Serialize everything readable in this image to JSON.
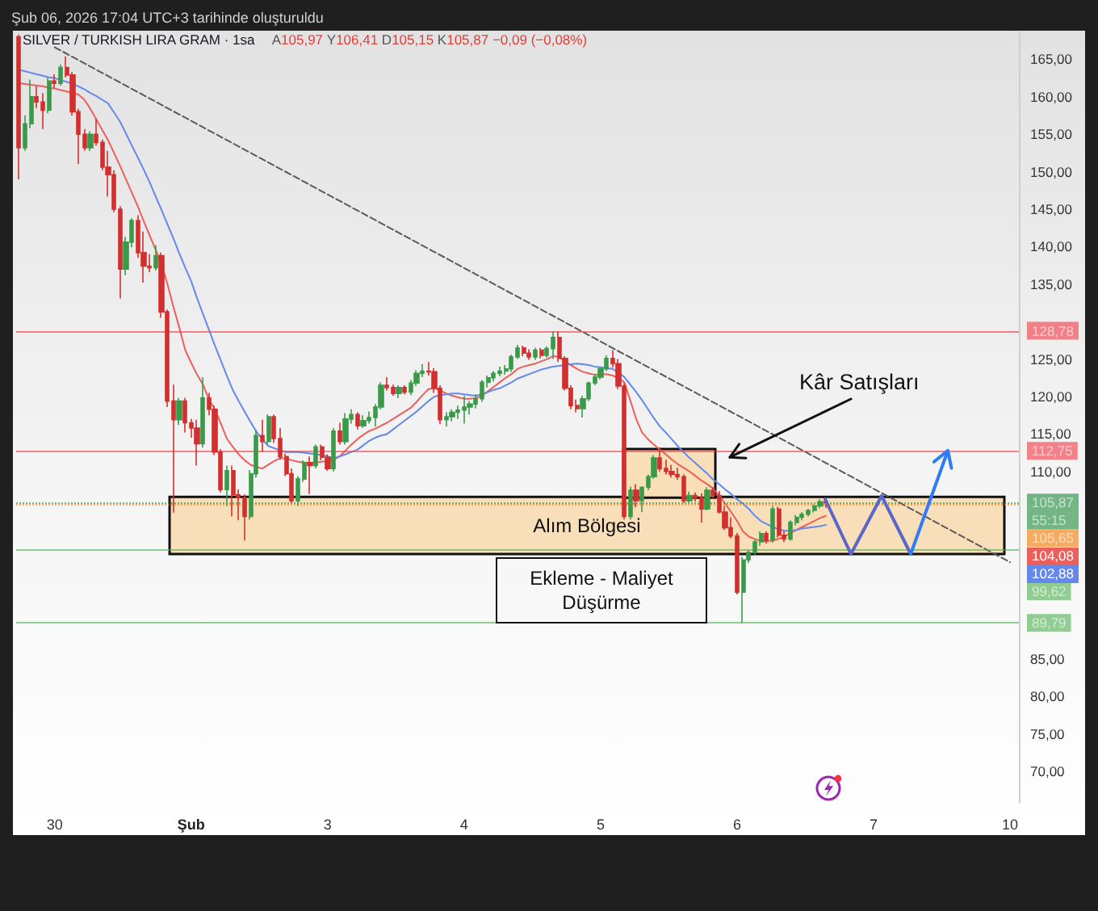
{
  "chart_data": {
    "type": "candlestick",
    "title": "SILVER / TURKISH LIRA GRAM · 1sa",
    "subtitle": "A105,97 Y106,41 D105,15 K105,87 −0,09 (−0,08%)",
    "annotations": [
      "Şub 06, 2026 17:04 UTC+3 tarihinde oluşturuldu",
      {
        "text": "Kâr Satışları",
        "y": 111.9
      },
      "Ekleme - Maliyet Düşürme",
      "104,08",
      "102,88"
    ],
    "categories": [
      null,
      null,
      null,
      null,
      null,
      null,
      "30",
      null,
      null,
      null,
      null,
      null,
      null,
      null,
      null,
      null,
      null,
      null,
      null,
      null,
      null,
      null,
      null,
      null,
      null,
      null,
      null,
      null,
      null,
      "Şub",
      null,
      null,
      null,
      null,
      null,
      null,
      null,
      null,
      null,
      null,
      null,
      null,
      null,
      null,
      null,
      null,
      null,
      null,
      null,
      null,
      null,
      null,
      "3",
      null,
      null,
      null,
      null,
      null,
      null,
      null,
      null,
      null,
      null,
      null,
      null,
      null,
      null,
      null,
      null,
      null,
      null,
      null,
      null,
      null,
      null,
      "4",
      null,
      null,
      null,
      null,
      null,
      null,
      null,
      null,
      null,
      null,
      null,
      null,
      null,
      null,
      null,
      null,
      null,
      null,
      null,
      null,
      null,
      null,
      "5",
      null,
      null,
      null,
      null,
      null,
      null,
      null,
      null,
      null,
      null,
      null,
      null,
      null,
      null,
      null,
      null,
      null,
      null,
      null,
      null,
      null,
      null,
      "6",
      null,
      null,
      null,
      null,
      null,
      null,
      null,
      null,
      null,
      null,
      null,
      null,
      null,
      null,
      null,
      null,
      null,
      null,
      null,
      null,
      null,
      null,
      "7",
      null,
      null,
      null,
      null,
      null,
      null,
      null,
      null,
      null,
      null,
      null,
      null,
      null,
      null,
      null,
      null,
      null,
      null,
      null,
      null,
      null,
      null,
      "10",
      null
    ],
    "ohlc": [
      [
        168.0,
        168.3,
        149.0,
        153.2
      ],
      [
        153.2,
        157.5,
        152.8,
        156.4
      ],
      [
        156.4,
        162.3,
        155.8,
        160.0
      ],
      [
        160.0,
        161.4,
        158.5,
        159.3
      ],
      [
        159.3,
        160.5,
        155.7,
        158.2
      ],
      [
        158.2,
        162.5,
        157.8,
        162.1
      ],
      [
        162.1,
        163.0,
        161.2,
        161.8
      ],
      [
        161.8,
        164.3,
        161.5,
        163.9
      ],
      [
        163.9,
        165.4,
        162.6,
        162.9
      ],
      [
        162.9,
        163.3,
        157.5,
        158.0
      ],
      [
        158.0,
        158.4,
        151.0,
        155.0
      ],
      [
        155.0,
        155.7,
        152.8,
        153.2
      ],
      [
        153.2,
        155.4,
        152.8,
        155.0
      ],
      [
        155.0,
        157.1,
        153.5,
        153.9
      ],
      [
        153.9,
        154.3,
        150.2,
        150.6
      ],
      [
        150.6,
        152.8,
        146.7,
        149.6
      ],
      [
        149.6,
        150.2,
        144.6,
        145.0
      ],
      [
        145.0,
        145.4,
        133.1,
        137.0
      ],
      [
        137.0,
        141.3,
        136.2,
        140.6
      ],
      [
        140.6,
        143.8,
        139.9,
        143.5
      ],
      [
        143.5,
        144.2,
        138.5,
        139.2
      ],
      [
        139.2,
        142.0,
        135.2,
        137.4
      ],
      [
        137.4,
        139.0,
        136.6,
        137.2
      ],
      [
        137.2,
        140.2,
        136.8,
        138.8
      ],
      [
        138.8,
        139.2,
        130.5,
        131.3
      ],
      [
        131.3,
        131.6,
        118.6,
        119.4
      ],
      [
        119.4,
        121.6,
        104.5,
        116.9
      ],
      [
        116.9,
        119.8,
        116.2,
        119.4
      ],
      [
        119.4,
        119.8,
        115.2,
        116.5
      ],
      [
        116.5,
        117.0,
        114.5,
        115.8
      ],
      [
        115.8,
        116.9,
        110.8,
        113.7
      ],
      [
        113.7,
        122.6,
        113.2,
        119.8
      ],
      [
        119.8,
        120.5,
        117.5,
        118.3
      ],
      [
        118.3,
        118.8,
        112.2,
        112.6
      ],
      [
        112.6,
        113.0,
        107.2,
        107.6
      ],
      [
        107.6,
        110.8,
        105.4,
        110.1
      ],
      [
        110.1,
        110.8,
        104.0,
        106.9
      ],
      [
        106.9,
        107.6,
        103.5,
        106.5
      ],
      [
        106.5,
        107.0,
        100.8,
        104.0
      ],
      [
        104.0,
        110.2,
        103.6,
        109.7
      ],
      [
        109.7,
        115.5,
        109.2,
        114.8
      ],
      [
        114.8,
        116.9,
        112.6,
        114.0
      ],
      [
        114.0,
        117.6,
        113.6,
        117.3
      ],
      [
        117.3,
        117.6,
        113.8,
        114.4
      ],
      [
        114.4,
        115.8,
        111.6,
        112.0
      ],
      [
        112.0,
        112.4,
        109.4,
        109.7
      ],
      [
        109.7,
        110.4,
        105.8,
        106.1
      ],
      [
        106.1,
        109.4,
        105.4,
        109.0
      ],
      [
        109.0,
        111.5,
        108.6,
        111.2
      ],
      [
        111.2,
        112.0,
        107.0,
        110.8
      ],
      [
        110.8,
        113.6,
        110.4,
        113.3
      ],
      [
        113.3,
        113.6,
        111.5,
        111.9
      ],
      [
        111.9,
        112.3,
        110.1,
        110.4
      ],
      [
        110.4,
        115.8,
        110.0,
        115.4
      ],
      [
        115.4,
        116.5,
        113.6,
        114.0
      ],
      [
        114.0,
        117.8,
        113.6,
        117.0
      ],
      [
        117.0,
        118.3,
        116.4,
        117.6
      ],
      [
        117.6,
        117.9,
        115.6,
        116.1
      ],
      [
        116.1,
        117.5,
        115.8,
        116.8
      ],
      [
        116.8,
        118.0,
        116.4,
        117.2
      ],
      [
        117.2,
        119.0,
        116.0,
        118.6
      ],
      [
        118.6,
        121.9,
        118.3,
        121.5
      ],
      [
        121.5,
        122.6,
        120.8,
        121.2
      ],
      [
        121.2,
        121.6,
        120.1,
        120.4
      ],
      [
        120.4,
        121.5,
        119.8,
        121.2
      ],
      [
        121.2,
        121.5,
        120.3,
        120.6
      ],
      [
        120.6,
        122.2,
        120.2,
        121.8
      ],
      [
        121.8,
        123.5,
        121.4,
        123.1
      ],
      [
        123.1,
        124.3,
        122.6,
        123.4
      ],
      [
        123.4,
        124.6,
        122.8,
        123.3
      ],
      [
        123.3,
        123.8,
        120.5,
        121.1
      ],
      [
        121.1,
        121.5,
        116.3,
        116.9
      ],
      [
        116.9,
        117.9,
        116.0,
        117.3
      ],
      [
        117.3,
        118.3,
        116.7,
        117.9
      ],
      [
        117.9,
        118.8,
        117.0,
        118.2
      ],
      [
        118.2,
        120.1,
        116.4,
        118.6
      ],
      [
        118.6,
        119.4,
        117.6,
        119.0
      ],
      [
        119.0,
        120.3,
        118.4,
        119.7
      ],
      [
        119.7,
        122.2,
        119.3,
        121.9
      ],
      [
        121.9,
        122.8,
        121.2,
        122.5
      ],
      [
        122.5,
        123.4,
        122.0,
        123.1
      ],
      [
        123.1,
        124.0,
        122.7,
        123.4
      ],
      [
        123.4,
        124.2,
        122.9,
        123.7
      ],
      [
        123.7,
        125.6,
        123.3,
        125.3
      ],
      [
        125.3,
        126.9,
        125.0,
        126.5
      ],
      [
        126.5,
        126.8,
        125.4,
        125.8
      ],
      [
        125.8,
        126.3,
        124.9,
        125.3
      ],
      [
        125.3,
        126.5,
        124.9,
        126.2
      ],
      [
        126.2,
        126.5,
        125.1,
        125.5
      ],
      [
        125.5,
        126.7,
        125.2,
        126.4
      ],
      [
        126.4,
        128.7,
        125.0,
        127.9
      ],
      [
        127.9,
        128.7,
        124.6,
        125.1
      ],
      [
        125.1,
        125.4,
        120.8,
        121.1
      ],
      [
        121.1,
        121.5,
        118.3,
        118.8
      ],
      [
        118.8,
        119.6,
        117.9,
        118.4
      ],
      [
        118.4,
        120.1,
        117.2,
        119.7
      ],
      [
        119.7,
        122.0,
        119.4,
        121.8
      ],
      [
        121.8,
        123.0,
        121.5,
        122.6
      ],
      [
        122.6,
        124.0,
        122.3,
        123.7
      ],
      [
        123.7,
        125.5,
        123.4,
        125.1
      ],
      [
        125.1,
        126.2,
        123.9,
        124.4
      ],
      [
        124.4,
        125.0,
        121.0,
        121.4
      ],
      [
        121.4,
        121.8,
        103.6,
        104.0
      ],
      [
        104.0,
        108.0,
        103.6,
        107.5
      ],
      [
        107.5,
        108.3,
        105.2,
        106.1
      ],
      [
        106.1,
        108.0,
        104.6,
        107.9
      ],
      [
        107.9,
        109.6,
        107.5,
        109.3
      ],
      [
        109.3,
        112.2,
        109.0,
        111.8
      ],
      [
        111.8,
        113.2,
        110.0,
        110.4
      ],
      [
        110.4,
        111.6,
        109.6,
        110.0
      ],
      [
        110.0,
        110.9,
        109.2,
        109.6
      ],
      [
        109.6,
        110.5,
        108.9,
        109.3
      ],
      [
        109.3,
        109.6,
        105.8,
        106.1
      ],
      [
        106.1,
        107.3,
        105.8,
        106.8
      ],
      [
        106.8,
        107.2,
        106.0,
        106.5
      ],
      [
        106.5,
        107.1,
        103.2,
        105.0
      ],
      [
        105.0,
        107.9,
        104.8,
        107.5
      ],
      [
        107.5,
        107.9,
        106.4,
        106.8
      ],
      [
        106.8,
        107.4,
        104.4,
        104.6
      ],
      [
        104.6,
        105.4,
        102.2,
        102.5
      ],
      [
        102.5,
        103.9,
        101.1,
        101.4
      ],
      [
        101.4,
        101.8,
        93.6,
        93.9
      ],
      [
        93.9,
        98.6,
        89.8,
        98.2
      ],
      [
        98.2,
        99.5,
        97.8,
        99.2
      ],
      [
        99.2,
        100.9,
        98.8,
        100.6
      ],
      [
        100.6,
        102.0,
        100.1,
        101.7
      ],
      [
        101.7,
        102.0,
        100.4,
        100.8
      ],
      [
        100.8,
        105.4,
        100.5,
        105.0
      ],
      [
        105.0,
        105.3,
        101.2,
        101.5
      ],
      [
        101.5,
        102.0,
        100.6,
        101.0
      ],
      [
        101.0,
        103.5,
        100.8,
        103.2
      ],
      [
        103.2,
        104.2,
        102.8,
        103.9
      ],
      [
        103.9,
        104.6,
        103.5,
        104.3
      ],
      [
        104.3,
        105.0,
        104.0,
        104.8
      ],
      [
        104.8,
        105.6,
        104.5,
        105.4
      ],
      [
        105.4,
        106.3,
        105.1,
        105.97
      ],
      [
        105.97,
        106.41,
        105.15,
        105.87
      ],
      null,
      null,
      null,
      null,
      null,
      null,
      null,
      null,
      null,
      null,
      null,
      null,
      null,
      null,
      null,
      null,
      null,
      null,
      null,
      null,
      null,
      null,
      null,
      null,
      null,
      null,
      null,
      null,
      null,
      null,
      null,
      null
    ],
    "colors": [
      "#d1302f",
      "#3a9a4a",
      "#3a9a4a",
      "#d1302f",
      "#d1302f",
      "#3a9a4a",
      "#d1302f",
      "#3a9a4a",
      "#d1302f",
      "#d1302f",
      "#d1302f",
      "#d1302f",
      "#3a9a4a",
      "#d1302f",
      "#d1302f",
      "#d1302f",
      "#d1302f",
      "#d1302f",
      "#3a9a4a",
      "#3a9a4a",
      "#d1302f",
      "#d1302f",
      "#d1302f",
      "#3a9a4a",
      "#d1302f",
      "#d1302f",
      "#d1302f",
      "#3a9a4a",
      "#d1302f",
      "#d1302f",
      "#d1302f",
      "#3a9a4a",
      "#d1302f",
      "#d1302f",
      "#d1302f",
      "#3a9a4a",
      "#d1302f",
      "#d1302f",
      "#d1302f",
      "#3a9a4a",
      "#3a9a4a",
      "#d1302f",
      "#3a9a4a",
      "#d1302f",
      "#d1302f",
      "#d1302f",
      "#d1302f",
      "#3a9a4a",
      "#3a9a4a",
      "#d1302f",
      "#3a9a4a",
      "#d1302f",
      "#d1302f",
      "#3a9a4a",
      "#d1302f",
      "#3a9a4a",
      "#3a9a4a",
      "#d1302f",
      "#3a9a4a",
      "#3a9a4a",
      "#3a9a4a",
      "#3a9a4a",
      "#d1302f",
      "#d1302f",
      "#3a9a4a",
      "#d1302f",
      "#3a9a4a",
      "#3a9a4a",
      "#3a9a4a",
      "#d1302f",
      "#d1302f",
      "#d1302f",
      "#3a9a4a",
      "#3a9a4a",
      "#3a9a4a",
      "#3a9a4a",
      "#3a9a4a",
      "#3a9a4a",
      "#3a9a4a",
      "#3a9a4a",
      "#3a9a4a",
      "#3a9a4a",
      "#3a9a4a",
      "#3a9a4a",
      "#3a9a4a",
      "#d1302f",
      "#d1302f",
      "#3a9a4a",
      "#d1302f",
      "#3a9a4a",
      "#3a9a4a",
      "#d1302f",
      "#d1302f",
      "#d1302f",
      "#d1302f",
      "#3a9a4a",
      "#3a9a4a",
      "#3a9a4a",
      "#3a9a4a",
      "#3a9a4a",
      "#d1302f",
      "#d1302f",
      "#d1302f",
      "#3a9a4a",
      "#d1302f",
      "#3a9a4a",
      "#3a9a4a",
      "#3a9a4a",
      "#d1302f",
      "#d1302f",
      "#d1302f",
      "#d1302f",
      "#d1302f",
      "#3a9a4a",
      "#d1302f",
      "#d1302f",
      "#3a9a4a",
      "#d1302f",
      "#d1302f",
      "#d1302f",
      "#d1302f",
      "#d1302f",
      "#3a9a4a",
      "#3a9a4a",
      "#3a9a4a",
      "#3a9a4a",
      "#d1302f",
      "#3a9a4a",
      "#d1302f",
      "#d1302f",
      "#3a9a4a",
      "#3a9a4a",
      "#3a9a4a",
      "#3a9a4a",
      "#3a9a4a",
      "#3a9a4a",
      "#d1302f",
      null,
      null,
      null,
      null,
      null,
      null,
      null,
      null,
      null,
      null,
      null,
      null,
      null,
      null,
      null,
      null,
      null,
      null,
      null,
      null,
      null,
      null,
      null,
      null,
      null,
      null,
      null,
      null,
      null,
      null,
      null,
      null
    ],
    "series": [
      {
        "type": "line",
        "color": "#ec5f5a",
        "values": [
          161.8,
          161.7,
          161.6,
          161.5,
          161.4,
          161.2,
          161.1,
          160.9,
          160.7,
          160.5,
          160.3,
          159.6,
          158.4,
          157.0,
          155.6,
          154.2,
          152.5,
          150.8,
          149.0,
          147.2,
          145.4,
          143.4,
          141.5,
          139.6,
          137.7,
          135.0,
          132.0,
          129.2,
          126.2,
          124.5,
          122.9,
          121.6,
          119.6,
          118.3,
          116.4,
          114.4,
          113.3,
          112.3,
          111.5,
          110.9,
          110.6,
          110.4,
          110.9,
          111.4,
          111.8,
          111.7,
          111.5,
          111.3,
          111.2,
          111.2,
          111.2,
          111.3,
          111.4,
          111.6,
          112.0,
          112.8,
          113.6,
          114.3,
          114.9,
          115.4,
          115.7,
          116.1,
          116.5,
          117.0,
          117.5,
          118.0,
          118.5,
          119.3,
          120.2,
          121.0,
          121.1,
          120.8,
          120.4,
          120.1,
          119.9,
          119.7,
          119.7,
          119.8,
          120.1,
          120.7,
          121.3,
          121.9,
          122.5,
          123.0,
          123.7,
          124.0,
          124.2,
          124.4,
          124.7,
          125.0,
          125.4,
          125.3,
          124.7,
          124.2,
          123.7,
          123.3,
          123.1,
          122.9,
          122.9,
          123.0,
          122.8,
          122.5,
          121.9,
          119.5,
          117.0,
          115.2,
          114.3,
          113.6,
          112.9,
          112.3,
          111.6,
          111.0,
          110.5,
          110.0,
          109.4,
          108.8,
          108.3,
          107.7,
          106.8,
          105.7,
          104.6,
          103.4,
          102.0,
          101.3,
          101.0,
          100.7,
          100.7,
          100.8,
          101.0,
          101.3,
          101.8,
          102.2,
          102.6,
          103.0,
          103.4,
          103.8,
          104.08,
          null,
          null,
          null,
          null,
          null,
          null,
          null,
          null,
          null,
          null,
          null,
          null,
          null,
          null,
          null,
          null,
          null,
          null,
          null,
          null,
          null,
          null,
          null,
          null,
          null,
          null,
          null,
          null,
          null,
          null,
          null,
          null
        ]
      },
      {
        "type": "line",
        "color": "#6489ea",
        "values": [
          163.6,
          163.4,
          163.2,
          163.0,
          162.8,
          162.6,
          162.5,
          162.2,
          162.0,
          161.7,
          161.4,
          161.0,
          160.5,
          160.1,
          159.6,
          159.1,
          157.9,
          156.7,
          155.1,
          153.5,
          151.9,
          150.3,
          148.6,
          146.7,
          144.9,
          143.0,
          141.1,
          139.1,
          137.2,
          135.4,
          133.1,
          131.0,
          128.9,
          126.8,
          124.8,
          122.8,
          120.9,
          119.4,
          118.0,
          116.6,
          115.3,
          114.3,
          113.4,
          113.1,
          112.8,
          112.6,
          112.6,
          112.6,
          112.5,
          112.4,
          112.3,
          112.2,
          112.0,
          111.8,
          112.0,
          112.3,
          112.6,
          112.9,
          113.5,
          114.1,
          114.5,
          114.8,
          115.0,
          115.6,
          116.2,
          116.8,
          117.4,
          118.0,
          118.7,
          119.4,
          120.0,
          120.2,
          120.3,
          120.4,
          120.4,
          120.3,
          120.2,
          120.1,
          120.3,
          120.6,
          120.9,
          121.1,
          121.5,
          121.9,
          122.4,
          122.7,
          123.0,
          123.3,
          123.6,
          123.8,
          124.0,
          124.1,
          124.2,
          124.3,
          124.4,
          124.3,
          124.2,
          124.0,
          123.9,
          123.8,
          123.7,
          123.2,
          122.6,
          121.6,
          120.6,
          119.5,
          118.3,
          117.1,
          116.0,
          115.2,
          114.3,
          113.4,
          112.6,
          111.8,
          111.1,
          110.4,
          109.7,
          108.9,
          108.3,
          107.6,
          107.0,
          106.3,
          105.7,
          105.0,
          104.1,
          103.4,
          103.0,
          102.6,
          102.3,
          102.1,
          102.1,
          102.2,
          102.4,
          102.5,
          102.6,
          102.7,
          102.88,
          null,
          null,
          null,
          null,
          null,
          null,
          null,
          null,
          null,
          null,
          null,
          null,
          null,
          null,
          null,
          null,
          null,
          null,
          null,
          null,
          null,
          null,
          null,
          null,
          null,
          null,
          null,
          null,
          null,
          null,
          null,
          null
        ]
      },
      {
        "type": "line",
        "x": [
          "30",
          "10"
        ],
        "values": [
          166.6,
          97.9
        ],
        "color": "#5a5a5a",
        "line_style": "dashed"
      }
    ],
    "ylim": [
      65.8,
      168.6
    ],
    "yticks": [
      {
        "value": 165,
        "label": "165,00"
      },
      {
        "value": 160,
        "label": "160,00"
      },
      {
        "value": 155,
        "label": "155,00"
      },
      {
        "value": 150,
        "label": "150,00"
      },
      {
        "value": 145,
        "label": "145,00"
      },
      {
        "value": 140,
        "label": "140,00"
      },
      {
        "value": 135,
        "label": "135,00"
      },
      {
        "value": 125,
        "label": "125,00"
      },
      {
        "value": 120,
        "label": "120,00"
      },
      {
        "value": 115,
        "label": "115,00"
      },
      {
        "value": 110,
        "label": "110,00"
      },
      {
        "value": 85,
        "label": "85,00"
      },
      {
        "value": 80,
        "label": "80,00"
      },
      {
        "value": 75,
        "label": "75,00"
      },
      {
        "value": 70,
        "label": "70,00"
      }
    ],
    "ref_lines": [
      {
        "axis": "y",
        "value": 128.78,
        "label": "128,78",
        "color": "#f23645"
      },
      {
        "axis": "y",
        "value": 112.75,
        "label": "112,75",
        "color": "#f23645"
      },
      {
        "axis": "y",
        "value": 105.87,
        "label": "105,87\n55:15",
        "color": "#1e8a3c",
        "line_style": "dotted"
      },
      {
        "axis": "y",
        "value": 105.65,
        "label": "105,65",
        "color": "#f57c00",
        "line_style": "dotted"
      },
      {
        "axis": "y",
        "value": 99.62,
        "label": "99,62",
        "color": "#4caf50"
      },
      {
        "axis": "y",
        "value": 89.79,
        "label": "89,79",
        "color": "#4caf50"
      }
    ],
    "bands": [
      {
        "axis": "y",
        "from": 99.0,
        "to": 106.6,
        "label": "Alım Bölgesi",
        "color": "#f8dfba"
      },
      {
        "axis": "y",
        "from": 106.5,
        "to": 113.0,
        "color": "#f8dfba"
      }
    ],
    "marker": "none"
  }
}
